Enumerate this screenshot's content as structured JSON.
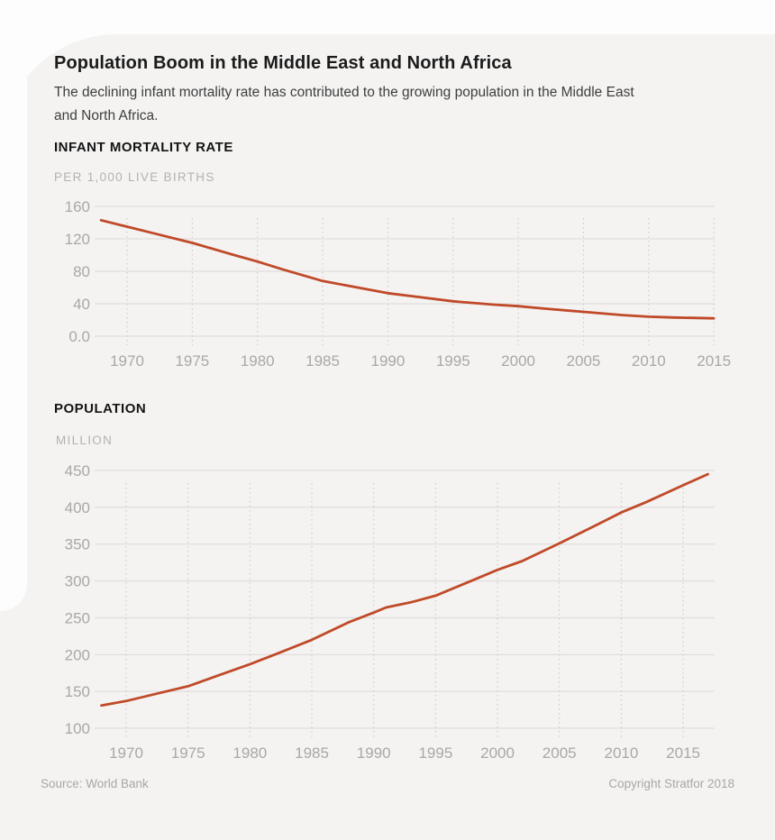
{
  "page": {
    "title": "Population Boom in the Middle East and North Africa",
    "subtitle": "The declining infant mortality rate has contributed to the growing population in the Middle East and North Africa.",
    "source": "Source: World Bank",
    "copyright": "Copyright Stratfor 2018"
  },
  "colors": {
    "page_bg": "#fdfdfd",
    "card_bg": "#f4f3f2",
    "line": "#c04a28",
    "grid_solid": "#dbd9d7",
    "grid_dotted": "#c8c6c4",
    "tick_text": "#aaa8a6"
  },
  "chart_data": [
    {
      "type": "line",
      "title": "INFANT MORTALITY RATE",
      "unit_label": "PER 1,000 LIVE BIRTHS",
      "legend": "none",
      "grid": "horizontal solid, vertical dotted",
      "xlim": [
        1968,
        2015
      ],
      "ylim": [
        0,
        160
      ],
      "x_ticks": [
        1970,
        1975,
        1980,
        1985,
        1990,
        1995,
        2000,
        2005,
        2010,
        2015
      ],
      "y_tick_values": [
        160,
        120,
        80,
        40,
        0
      ],
      "y_tick_labels": [
        "160",
        "120",
        "80",
        "40",
        "0.0"
      ],
      "x": [
        1968,
        1970,
        1972,
        1975,
        1978,
        1980,
        1982,
        1985,
        1988,
        1990,
        1992,
        1995,
        1998,
        2000,
        2002,
        2005,
        2008,
        2010,
        2012,
        2015
      ],
      "values": [
        143,
        135,
        127,
        115,
        101,
        92,
        82,
        68,
        59,
        53,
        49,
        43,
        39,
        37,
        34,
        30,
        26,
        24,
        23,
        22
      ]
    },
    {
      "type": "line",
      "title": "POPULATION",
      "unit_label": "MILLION",
      "legend": "none",
      "grid": "horizontal solid, vertical dotted",
      "xlim": [
        1968,
        2017
      ],
      "ylim": [
        100,
        450
      ],
      "x_ticks": [
        1970,
        1975,
        1980,
        1985,
        1990,
        1995,
        2000,
        2005,
        2010,
        2015
      ],
      "y_tick_values": [
        450,
        400,
        350,
        300,
        250,
        200,
        150,
        100
      ],
      "y_tick_labels": [
        "450",
        "400",
        "350",
        "300",
        "250",
        "200",
        "150",
        "100"
      ],
      "x": [
        1968,
        1970,
        1972,
        1975,
        1978,
        1980,
        1982,
        1985,
        1988,
        1990,
        1991,
        1993,
        1995,
        1998,
        2000,
        2002,
        2005,
        2008,
        2010,
        2012,
        2015,
        2017
      ],
      "values": [
        131,
        137,
        145,
        157,
        175,
        187,
        200,
        220,
        244,
        257,
        264,
        271,
        280,
        301,
        315,
        327,
        351,
        376,
        393,
        407,
        430,
        445
      ]
    }
  ]
}
